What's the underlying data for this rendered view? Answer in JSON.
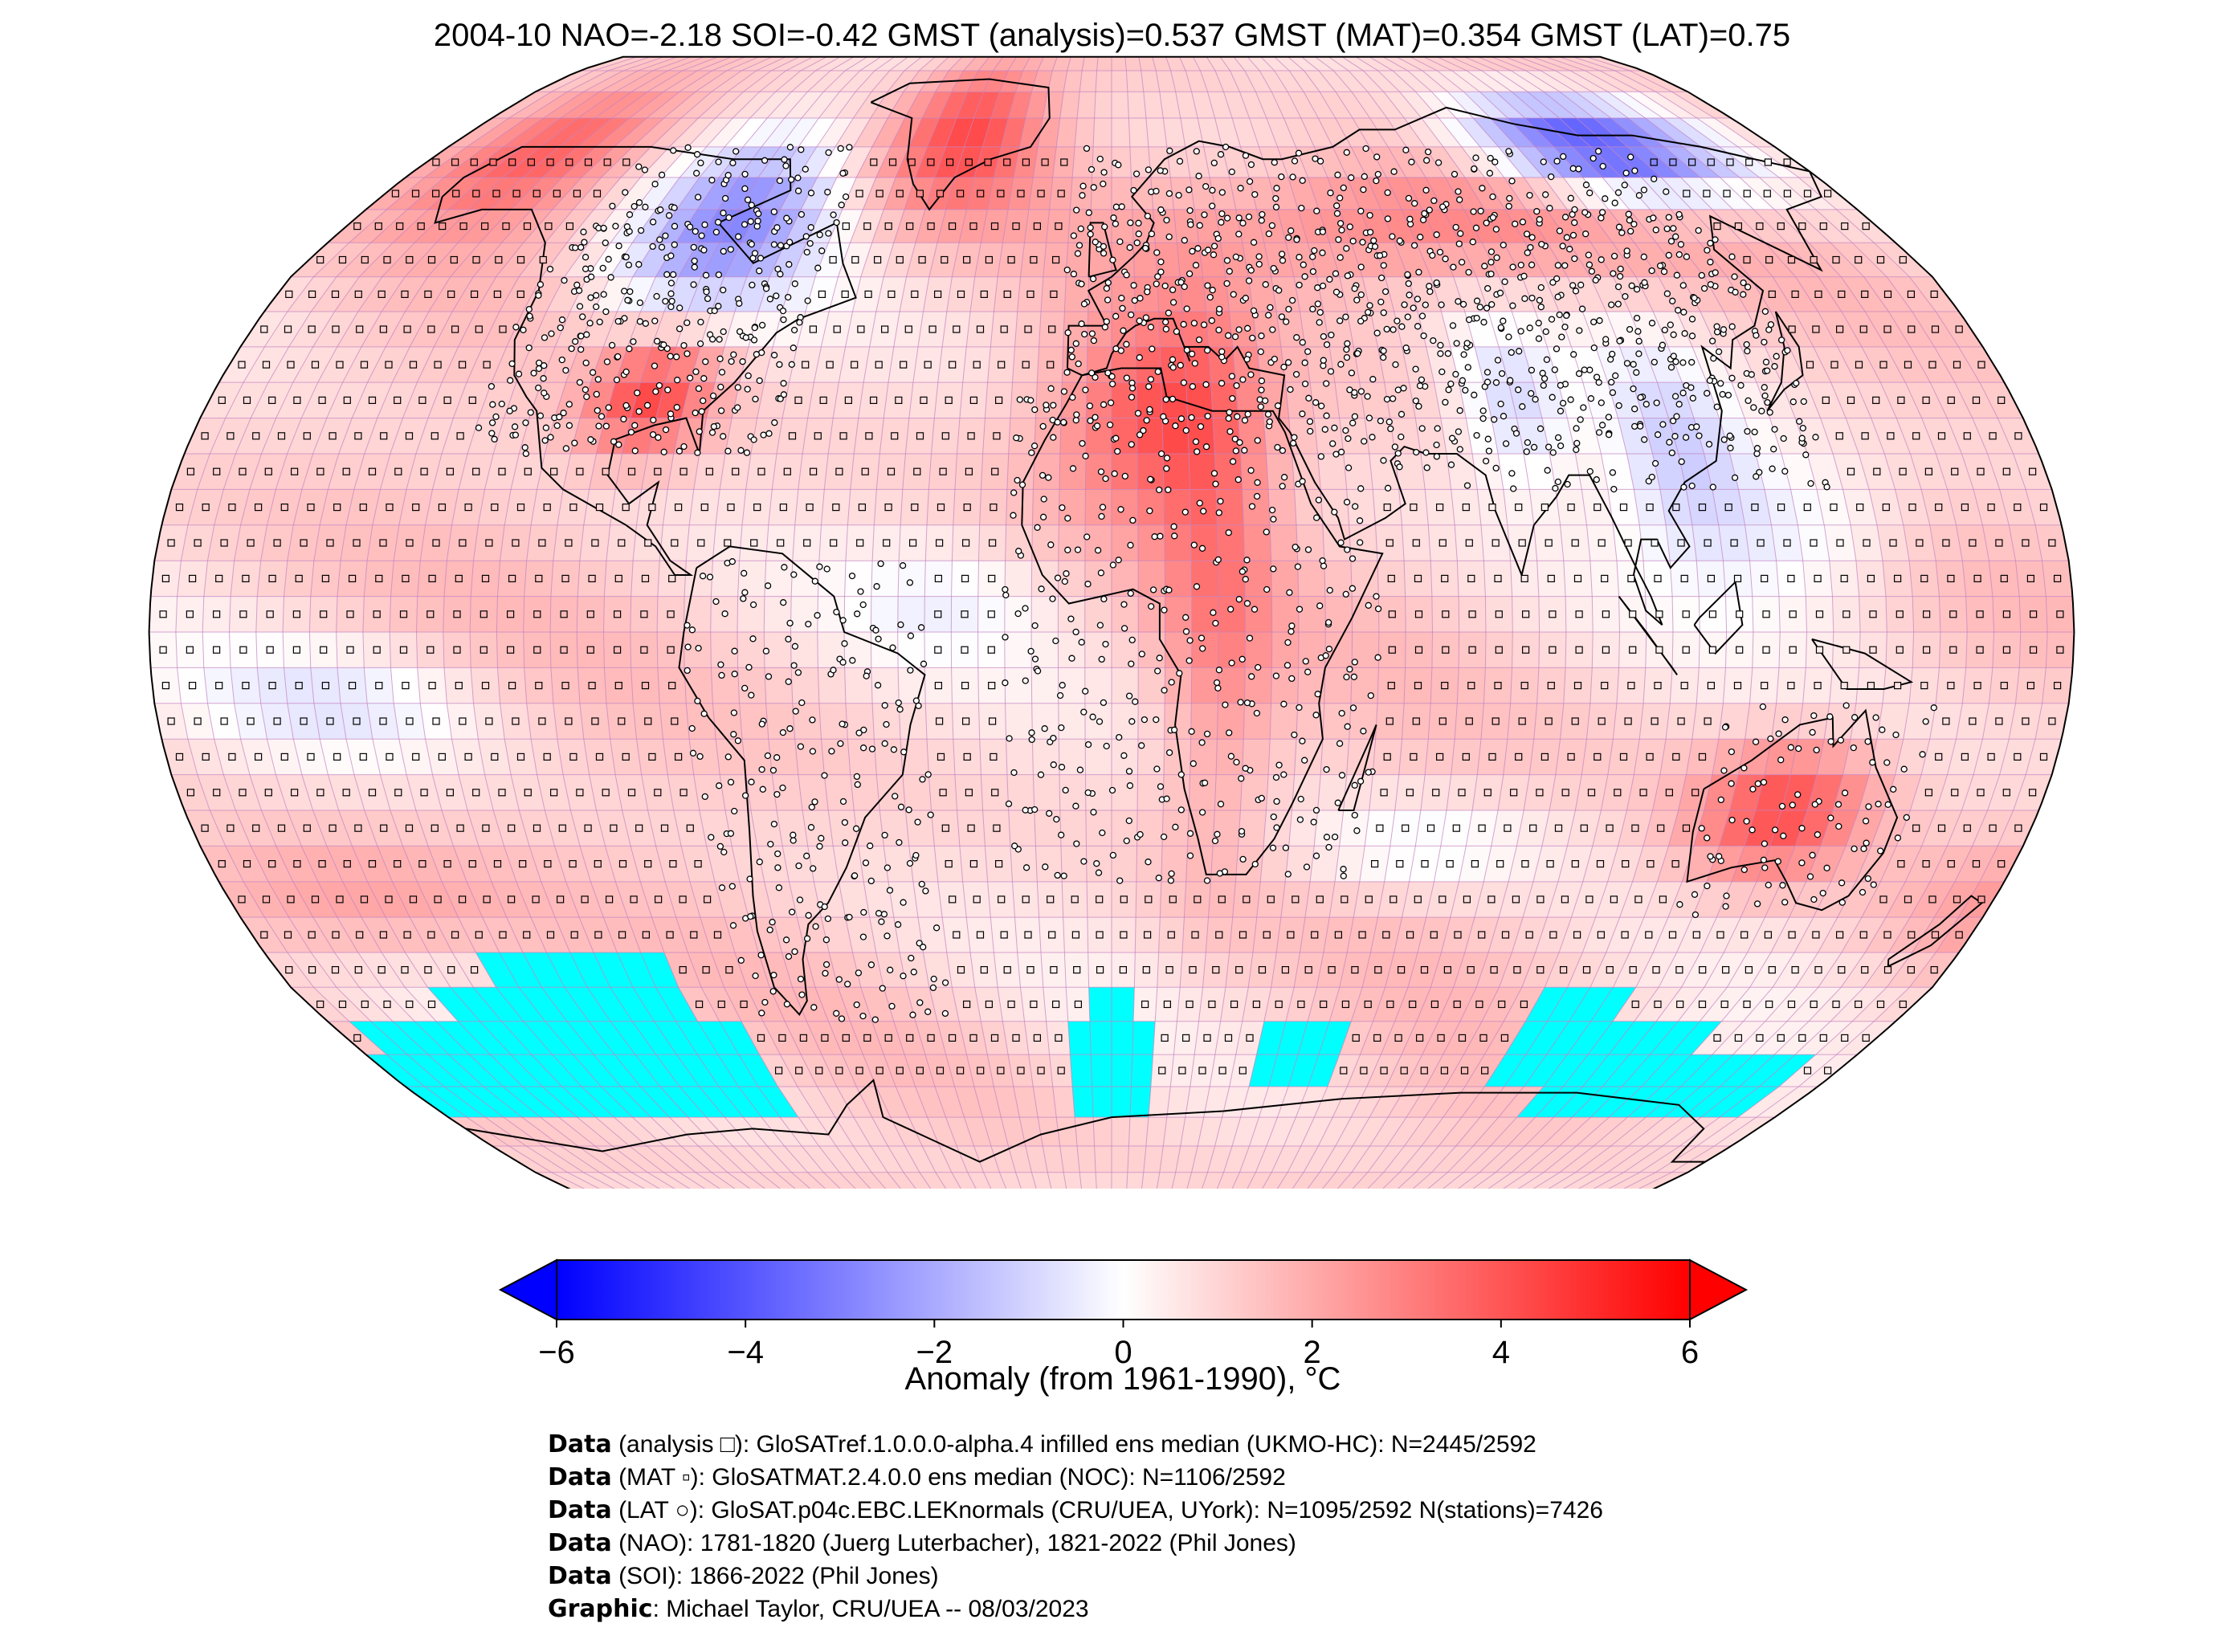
{
  "title": "2004-10 NAO=-2.18 SOI=-0.42 GMST (analysis)=0.537 GMST (MAT)=0.354 GMST (LAT)=0.75",
  "map": {
    "projection": "Robinson",
    "background_color": "#ffffff",
    "no_data_color": "#00ffff",
    "gridline_color": "#c080c0",
    "marker_legend": {
      "analysis": "square",
      "MAT": "filled small square",
      "LAT": "circle"
    }
  },
  "colorbar": {
    "label": "Anomaly (from 1961-1990), °C",
    "min": -6,
    "max": 6,
    "ticks": [
      "−6",
      "−4",
      "−2",
      "0",
      "2",
      "4",
      "6"
    ],
    "tick_values": [
      -6,
      -4,
      -2,
      0,
      2,
      4,
      6
    ],
    "cmap": "bwr",
    "low_color": "#0000ff",
    "mid_color": "#ffffff",
    "high_color": "#ff0000",
    "extend": "both"
  },
  "credits": [
    {
      "bold": "Data",
      "text": " (analysis □): GloSATref.1.0.0.0-alpha.4 infilled ens median (UKMO-HC): N=2445/2592"
    },
    {
      "bold": "Data",
      "text": " (MAT ▫): GloSATMAT.2.4.0.0 ens median (NOC): N=1106/2592"
    },
    {
      "bold": "Data",
      "text": " (LAT ○): GloSAT.p04c.EBC.LEKnormals (CRU/UEA, UYork): N=1095/2592 N(stations)=7426"
    },
    {
      "bold": "Data",
      "text": " (NAO): 1781-1820 (Juerg Luterbacher), 1821-2022 (Phil Jones)"
    },
    {
      "bold": "Data",
      "text": " (SOI): 1866-2022 (Phil Jones)"
    },
    {
      "bold": "Graphic",
      "text": ": Michael Taylor, CRU/UEA -- 08/03/2023"
    }
  ]
}
